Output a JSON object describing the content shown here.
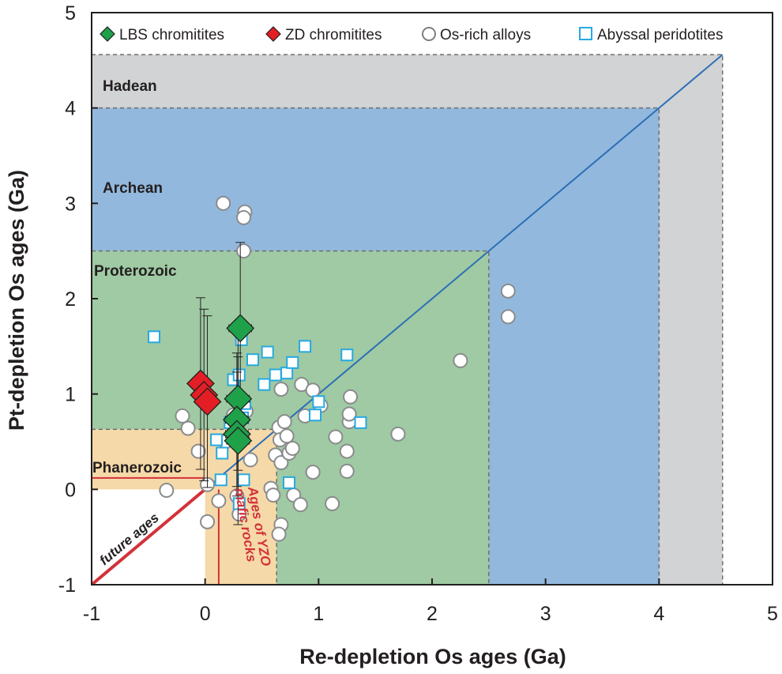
{
  "chart_data": {
    "type": "scatter",
    "title": "",
    "xlabel": "Re-depletion Os ages (Ga)",
    "ylabel": "Pt-depletion Os ages (Ga)",
    "xlim": [
      -1,
      5
    ],
    "ylim": [
      -1,
      5
    ],
    "x_ticks": [
      "-1",
      "0",
      "1",
      "2",
      "3",
      "4",
      "5"
    ],
    "y_ticks": [
      "-1",
      "0",
      "1",
      "2",
      "3",
      "4",
      "5"
    ],
    "eras": [
      {
        "name": "Hadean",
        "max_age": 4.56,
        "color": "#d1d3d4"
      },
      {
        "name": "Archean",
        "max_age": 4.0,
        "color": "#93b8dd"
      },
      {
        "name": "Proterozoic",
        "max_age": 2.5,
        "color": "#9fcaa3"
      },
      {
        "name": "Phanerozoic",
        "max_age": 0.63,
        "color": "#f6d9a8"
      }
    ],
    "one_to_one_line": [
      [
        0,
        0
      ],
      [
        4.56,
        4.56
      ]
    ],
    "future_line": [
      [
        -1,
        -1
      ],
      [
        0,
        0
      ]
    ],
    "yzo_mafic_age": 0.12,
    "annotations": {
      "future": "future ages",
      "yzo_line1": "Ages of YZO",
      "yzo_line2": "mafic rocks"
    },
    "series": [
      {
        "name": "LBS chromitites",
        "marker": "diamond",
        "color": "#1fa14a",
        "points": [
          [
            0.31,
            1.69
          ],
          [
            0.29,
            0.95
          ],
          [
            0.28,
            0.73
          ],
          [
            0.28,
            0.58
          ],
          [
            0.29,
            0.51
          ]
        ],
        "y_err": [
          0.9,
          0.75,
          0.7,
          0.65,
          0.88
        ],
        "x_err": [
          0.1,
          0.1,
          0.1,
          0.1,
          0.1
        ]
      },
      {
        "name": "ZD chromitites",
        "marker": "diamond",
        "color": "#e31e25",
        "points": [
          [
            -0.04,
            1.11
          ],
          [
            -0.01,
            0.99
          ],
          [
            0.02,
            0.92
          ]
        ],
        "y_err": [
          0.9,
          0.9,
          0.9
        ],
        "x_err": [
          0.08,
          0.08,
          0.08
        ]
      },
      {
        "name": "Os-rich alloys",
        "marker": "circle",
        "color": "#ffffff",
        "points": [
          [
            0.16,
            3.0
          ],
          [
            0.35,
            2.91
          ],
          [
            0.34,
            2.85
          ],
          [
            0.34,
            2.5
          ],
          [
            2.67,
            2.08
          ],
          [
            2.67,
            1.81
          ],
          [
            2.25,
            1.35
          ],
          [
            1.7,
            0.58
          ],
          [
            -0.2,
            0.77
          ],
          [
            -0.15,
            0.64
          ],
          [
            -0.06,
            0.4
          ],
          [
            -0.34,
            -0.01
          ],
          [
            0.02,
            -0.34
          ],
          [
            0.02,
            0.05
          ],
          [
            0.12,
            -0.12
          ],
          [
            0.18,
            0.5
          ],
          [
            0.28,
            -0.07
          ],
          [
            0.3,
            -0.26
          ],
          [
            0.36,
            0.82
          ],
          [
            0.4,
            0.31
          ],
          [
            0.58,
            0.01
          ],
          [
            0.6,
            -0.06
          ],
          [
            0.62,
            0.36
          ],
          [
            0.65,
            0.65
          ],
          [
            0.66,
            0.52
          ],
          [
            0.67,
            -0.37
          ],
          [
            0.67,
            0.28
          ],
          [
            0.67,
            1.05
          ],
          [
            0.7,
            0.71
          ],
          [
            0.72,
            0.56
          ],
          [
            0.74,
            0.38
          ],
          [
            0.77,
            0.43
          ],
          [
            0.78,
            -0.06
          ],
          [
            0.84,
            -0.16
          ],
          [
            0.85,
            1.1
          ],
          [
            0.88,
            0.77
          ],
          [
            0.95,
            0.18
          ],
          [
            0.95,
            1.04
          ],
          [
            1.02,
            0.88
          ],
          [
            1.12,
            -0.15
          ],
          [
            1.15,
            0.55
          ],
          [
            1.25,
            0.4
          ],
          [
            1.25,
            0.19
          ],
          [
            1.27,
            0.71
          ],
          [
            1.27,
            0.79
          ],
          [
            1.28,
            0.97
          ],
          [
            0.65,
            -0.47
          ],
          [
            0.25,
            0.78
          ]
        ]
      },
      {
        "name": "Abyssal peridotites",
        "marker": "square",
        "color": "#ffffff",
        "edge": "#27a9e1",
        "points": [
          [
            -0.45,
            1.6
          ],
          [
            0.55,
            1.44
          ],
          [
            0.88,
            1.5
          ],
          [
            1.25,
            1.41
          ],
          [
            0.42,
            1.36
          ],
          [
            0.62,
            1.2
          ],
          [
            0.72,
            1.22
          ],
          [
            0.77,
            1.33
          ],
          [
            0.52,
            1.1
          ],
          [
            0.25,
            1.15
          ],
          [
            0.3,
            1.2
          ],
          [
            1.0,
            0.92
          ],
          [
            0.97,
            0.78
          ],
          [
            1.37,
            0.7
          ],
          [
            0.22,
            0.7
          ],
          [
            0.33,
            0.75
          ],
          [
            0.15,
            0.38
          ],
          [
            0.1,
            0.52
          ],
          [
            0.14,
            0.1
          ],
          [
            0.34,
            0.1
          ],
          [
            0.74,
            0.07
          ],
          [
            0.3,
            -0.15
          ],
          [
            0.32,
            1.57
          ],
          [
            0.35,
            0.9
          ]
        ]
      }
    ],
    "legend": [
      "LBS chromitites",
      "ZD chromitites",
      "Os-rich alloys",
      "Abyssal peridotites"
    ]
  }
}
